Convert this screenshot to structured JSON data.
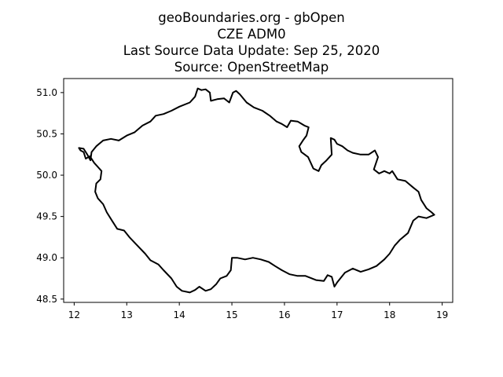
{
  "title": {
    "lines": [
      "geoBoundaries.org - gbOpen",
      "CZE ADM0",
      "Last Source Data Update: Sep 25, 2020",
      "Source: OpenStreetMap"
    ]
  },
  "chart_data": {
    "type": "line",
    "title": "geoBoundaries.org - gbOpen\nCZE ADM0\nLast Source Data Update: Sep 25, 2020\nSource: OpenStreetMap",
    "xlabel": "",
    "ylabel": "",
    "xlim": [
      11.8,
      19.2
    ],
    "ylim": [
      48.46,
      51.17
    ],
    "xticks": [
      12,
      13,
      14,
      15,
      16,
      17,
      18,
      19
    ],
    "yticks": [
      48.5,
      49.0,
      49.5,
      50.0,
      50.5,
      51.0
    ],
    "xtick_labels": [
      "12",
      "13",
      "14",
      "15",
      "16",
      "17",
      "18",
      "19"
    ],
    "ytick_labels": [
      "48.5",
      "49.0",
      "49.5",
      "50.0",
      "50.5",
      "51.0"
    ],
    "grid": false,
    "series": [
      {
        "color": "#000000",
        "x": [
          12.09,
          12.18,
          12.25,
          12.31,
          12.33,
          12.42,
          12.55,
          12.7,
          12.85,
          13.0,
          13.15,
          13.3,
          13.45,
          13.55,
          13.7,
          13.85,
          14.0,
          14.2,
          14.3,
          14.35,
          14.42,
          14.5,
          14.58,
          14.6,
          14.72,
          14.85,
          14.95,
          15.02,
          15.08,
          15.15,
          15.28,
          15.42,
          15.58,
          15.72,
          15.85,
          15.95,
          16.05,
          16.12,
          16.25,
          16.38,
          16.46,
          16.42,
          16.35,
          16.28,
          16.32,
          16.45,
          16.55,
          16.65,
          16.7,
          16.8,
          16.9,
          16.88,
          16.95,
          17.0,
          17.1,
          17.2,
          17.3,
          17.45,
          17.6,
          17.72,
          17.78,
          17.7,
          17.8,
          17.9,
          18.0,
          18.05,
          18.15,
          18.3,
          18.45,
          18.55,
          18.6,
          18.7,
          18.8,
          18.85,
          18.7,
          18.55,
          18.45,
          18.35,
          18.2,
          18.1,
          18.0,
          17.9,
          17.75,
          17.6,
          17.45,
          17.3,
          17.15,
          17.0,
          16.95,
          16.9,
          16.82,
          16.75,
          16.6,
          16.4,
          16.25,
          16.1,
          15.95,
          15.82,
          15.7,
          15.55,
          15.4,
          15.25,
          15.1,
          15.0,
          14.98,
          14.9,
          14.78,
          14.7,
          14.6,
          14.5,
          14.38,
          14.3,
          14.2,
          14.05,
          13.95,
          13.85,
          13.7,
          13.6,
          13.45,
          13.35,
          13.2,
          13.05,
          12.95,
          12.82,
          12.72,
          12.62,
          12.55,
          12.45,
          12.4,
          12.42,
          12.5,
          12.52,
          12.45,
          12.38,
          12.3,
          12.22,
          12.18,
          12.12,
          12.09
        ],
        "y": [
          50.33,
          50.32,
          50.25,
          50.18,
          50.28,
          50.35,
          50.42,
          50.44,
          50.42,
          50.48,
          50.52,
          50.6,
          50.65,
          50.72,
          50.74,
          50.78,
          50.83,
          50.88,
          50.95,
          51.05,
          51.03,
          51.04,
          51.0,
          50.9,
          50.92,
          50.93,
          50.88,
          51.0,
          51.02,
          50.98,
          50.88,
          50.82,
          50.78,
          50.72,
          50.65,
          50.62,
          50.58,
          50.66,
          50.65,
          50.6,
          50.58,
          50.48,
          50.42,
          50.35,
          50.28,
          50.22,
          50.08,
          50.05,
          50.12,
          50.18,
          50.25,
          50.45,
          50.43,
          50.38,
          50.35,
          50.3,
          50.27,
          50.25,
          50.25,
          50.3,
          50.22,
          50.07,
          50.02,
          50.05,
          50.02,
          50.05,
          49.95,
          49.93,
          49.85,
          49.8,
          49.7,
          49.6,
          49.55,
          49.52,
          49.48,
          49.5,
          49.45,
          49.3,
          49.22,
          49.15,
          49.05,
          48.98,
          48.9,
          48.86,
          48.83,
          48.87,
          48.82,
          48.7,
          48.65,
          48.77,
          48.79,
          48.72,
          48.73,
          48.78,
          48.78,
          48.8,
          48.85,
          48.9,
          48.95,
          48.98,
          49.0,
          48.98,
          49.0,
          49.0,
          48.85,
          48.78,
          48.75,
          48.68,
          48.62,
          48.6,
          48.65,
          48.61,
          48.58,
          48.6,
          48.65,
          48.75,
          48.85,
          48.92,
          48.97,
          49.05,
          49.15,
          49.25,
          49.33,
          49.35,
          49.45,
          49.55,
          49.65,
          49.72,
          49.8,
          49.9,
          49.95,
          50.05,
          50.1,
          50.15,
          50.23,
          50.2,
          50.28,
          50.3,
          50.33
        ]
      }
    ]
  }
}
